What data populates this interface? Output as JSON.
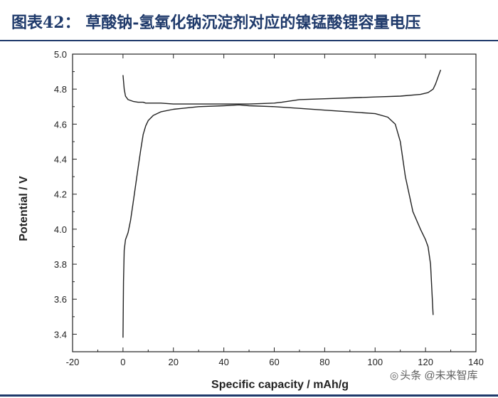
{
  "title": "图表42：  草酸钠-氢氧化钠沉淀剂对应的镍锰酸锂容量电压",
  "watermark": "头条 @未来智库",
  "colors": {
    "title": "#1f3a6b",
    "line": "#222222",
    "rule": "#1f3a6b"
  },
  "chart_data": {
    "type": "line",
    "xlabel": "Specific capacity / mAh/g",
    "ylabel": "Potential / V",
    "xlim": [
      -20,
      140
    ],
    "ylim": [
      3.3,
      5.0
    ],
    "x_ticks": [
      -20,
      0,
      20,
      40,
      60,
      80,
      100,
      120,
      140
    ],
    "y_ticks": [
      "3.4",
      "3.6",
      "3.8",
      "4.0",
      "4.2",
      "4.4",
      "4.6",
      "4.8",
      "5.0"
    ],
    "grid": false,
    "legend": "none",
    "series": [
      {
        "x": [
          0,
          0.5,
          1,
          2,
          4,
          6,
          8,
          9,
          10,
          12,
          15,
          20,
          30,
          40,
          50,
          60,
          63,
          70,
          80,
          90,
          100,
          110,
          118,
          121,
          123,
          124,
          125,
          126
        ],
        "y": [
          4.88,
          4.8,
          4.76,
          4.74,
          4.73,
          4.725,
          4.725,
          4.72,
          4.72,
          4.72,
          4.72,
          4.715,
          4.715,
          4.715,
          4.715,
          4.72,
          4.725,
          4.74,
          4.745,
          4.75,
          4.755,
          4.76,
          4.77,
          4.78,
          4.8,
          4.83,
          4.87,
          4.91
        ]
      },
      {
        "x": [
          0,
          0.2,
          0.5,
          1,
          2,
          3,
          4,
          5,
          6,
          7,
          8,
          9,
          10,
          12,
          15,
          20,
          30,
          40,
          46,
          50,
          60,
          70,
          80,
          90,
          100,
          105,
          108,
          110,
          112,
          115,
          118,
          120,
          121,
          122,
          123
        ],
        "y": [
          3.38,
          3.7,
          3.88,
          3.94,
          3.98,
          4.05,
          4.15,
          4.25,
          4.35,
          4.45,
          4.54,
          4.59,
          4.62,
          4.65,
          4.67,
          4.685,
          4.7,
          4.705,
          4.71,
          4.705,
          4.7,
          4.69,
          4.68,
          4.67,
          4.66,
          4.64,
          4.6,
          4.5,
          4.3,
          4.1,
          4.0,
          3.94,
          3.9,
          3.8,
          3.51
        ]
      }
    ]
  }
}
